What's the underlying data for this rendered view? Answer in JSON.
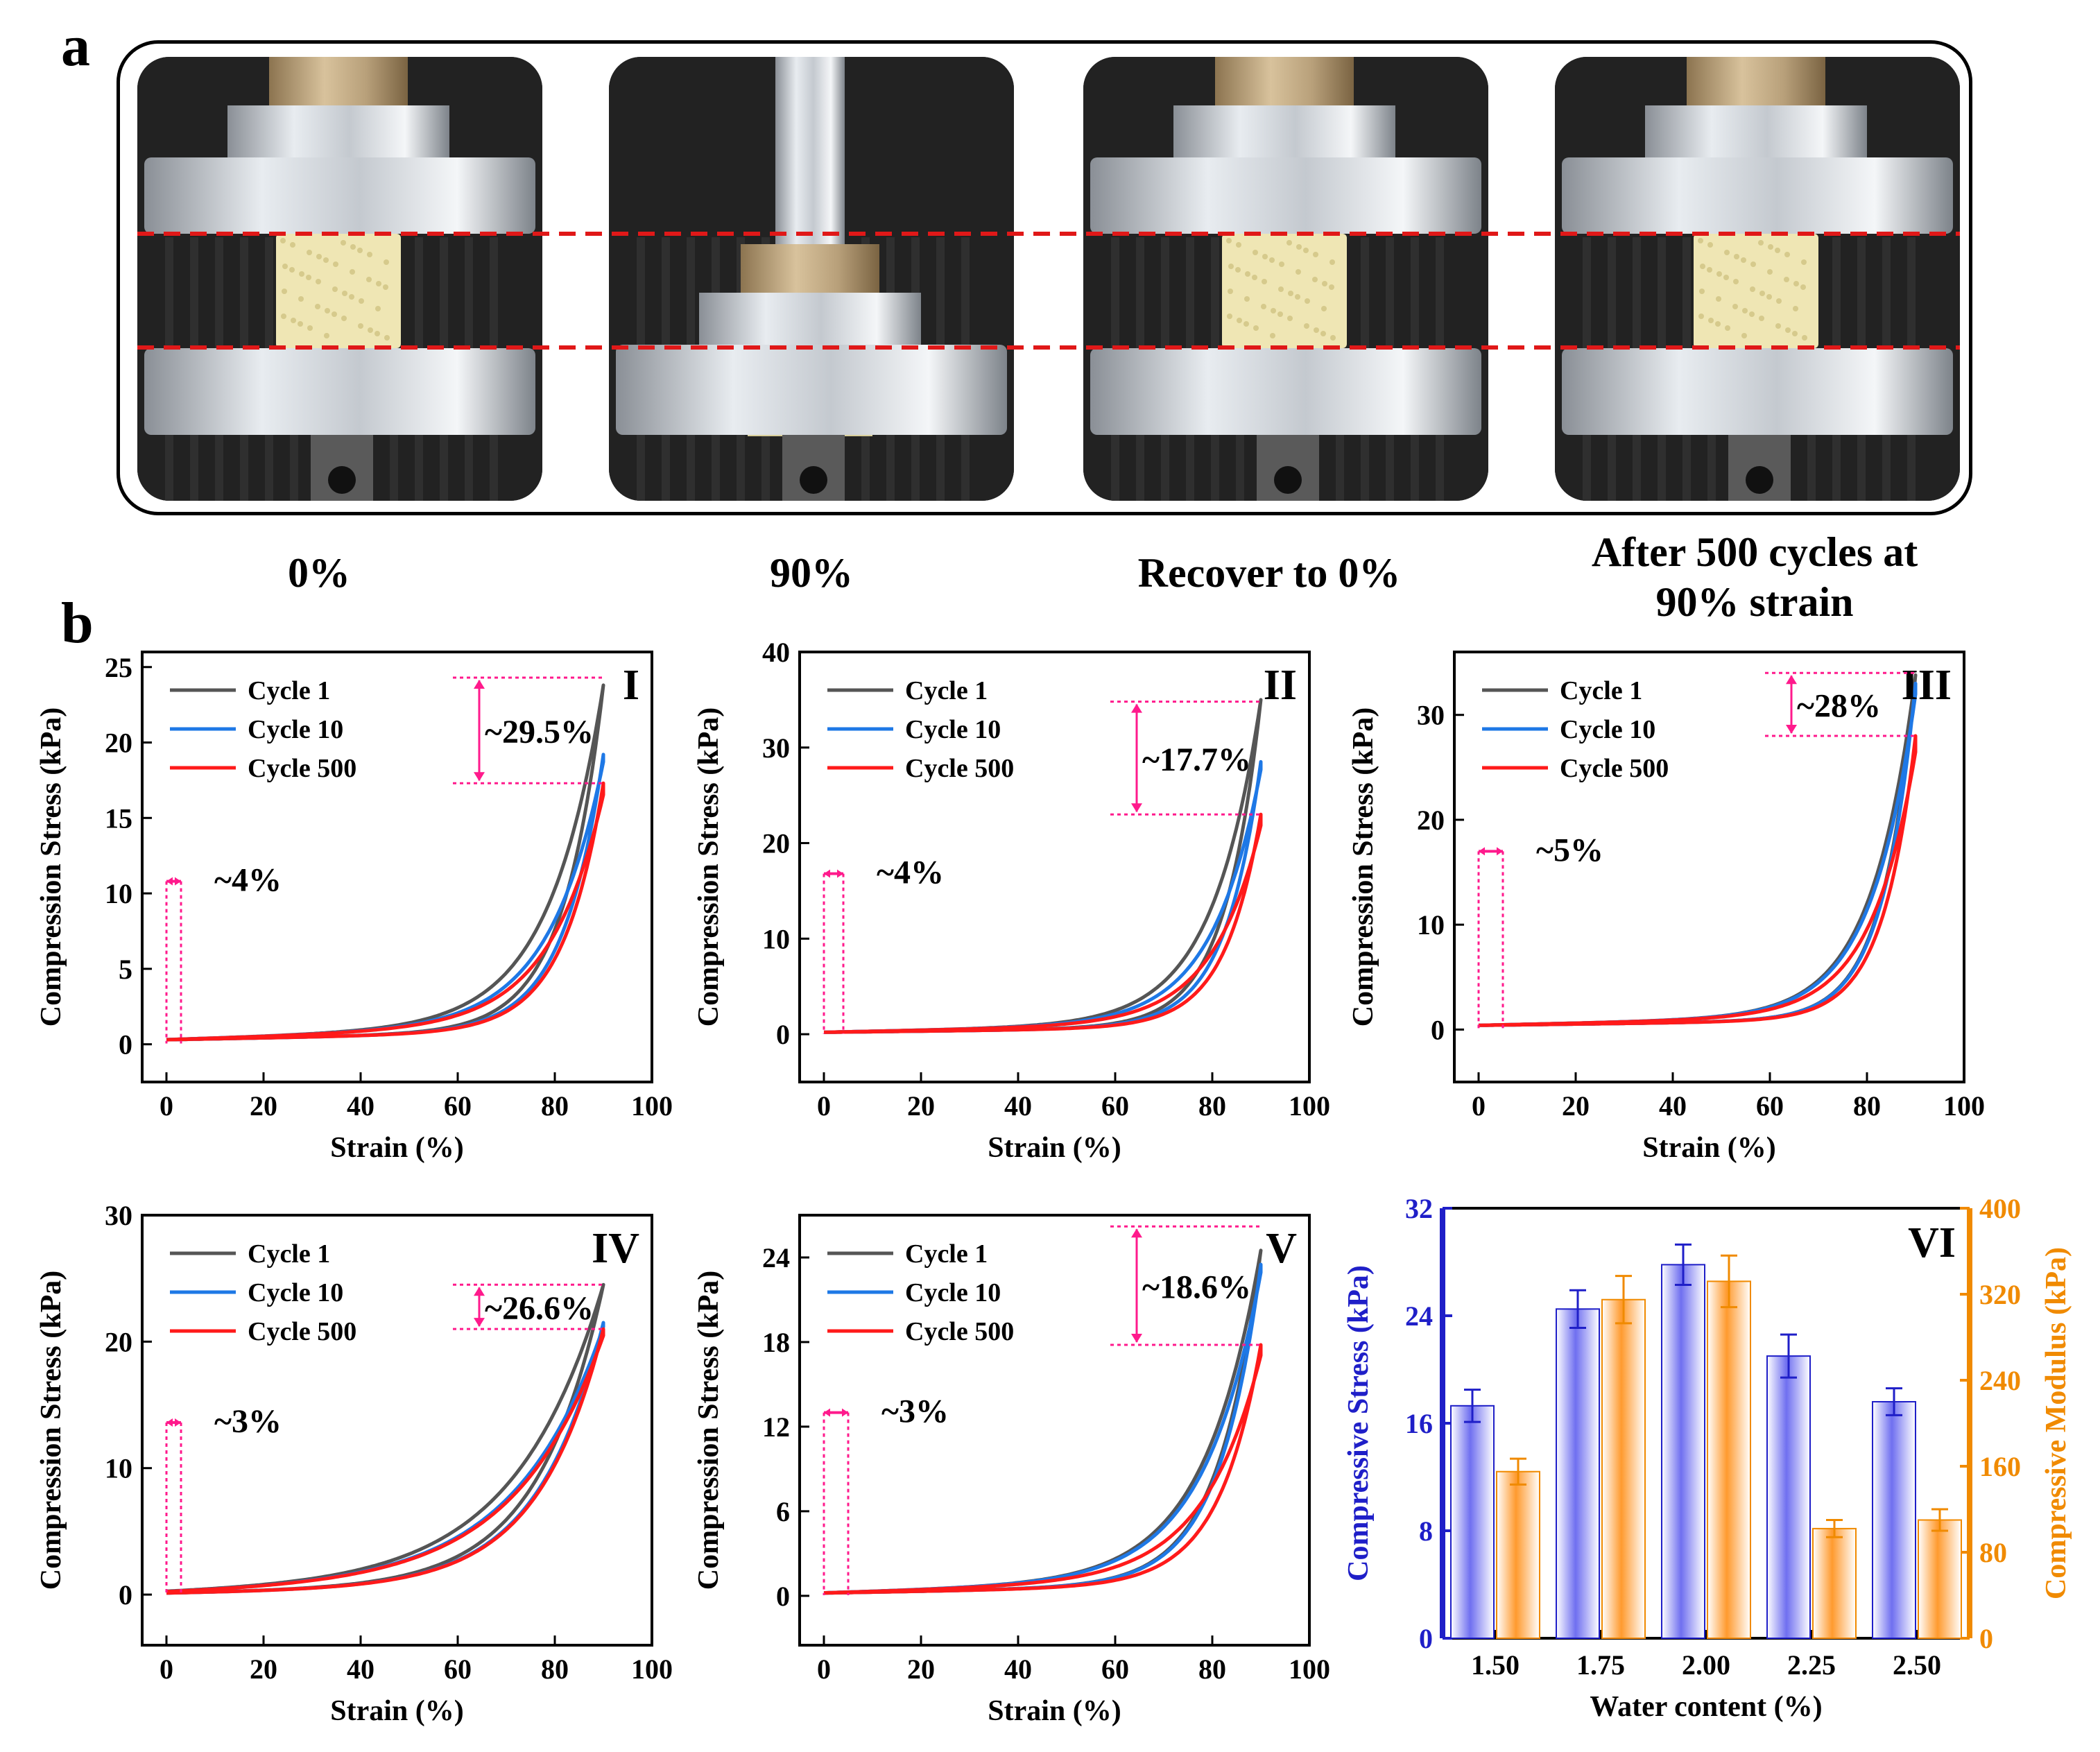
{
  "panel_labels": {
    "a": "a",
    "b": "b"
  },
  "photos": [
    {
      "caption": "0%",
      "state": "uncompressed"
    },
    {
      "caption": "90%",
      "state": "compressed"
    },
    {
      "caption": "Recover to 0%",
      "state": "recovered"
    },
    {
      "caption_line1": "After 500 cycles at",
      "caption_line2": "90% strain",
      "state": "after-cycles"
    }
  ],
  "colors": {
    "cycle1": "#555555",
    "cycle10": "#1e78e6",
    "cycle500": "#ff1a1a",
    "guide": "#ff1a8c",
    "photo_guide": "#e01818",
    "stress_axis": "#1f1fc8",
    "stress_bar": "#6f6ff0",
    "modulus_axis": "#f08a00",
    "modulus_bar": "#ff9a2e"
  },
  "chart_data": [
    {
      "id": "I",
      "type": "line",
      "roman": "I",
      "xlabel": "Strain (%)",
      "ylabel": "Compression Stress (kPa)",
      "xlim": [
        -5,
        100
      ],
      "ylim": [
        -2.5,
        26
      ],
      "xticks": [
        "0",
        "20",
        "40",
        "60",
        "80",
        "100"
      ],
      "xtick_values": [
        0,
        20,
        40,
        60,
        80,
        100
      ],
      "yticks": [
        "0",
        "5",
        "10",
        "15",
        "20",
        "25"
      ],
      "ytick_values": [
        0,
        5,
        10,
        15,
        20,
        25
      ],
      "legend": [
        "Cycle 1",
        "Cycle 10",
        "Cycle 500"
      ],
      "series": [
        {
          "name": "Cycle 1",
          "color_key": "cycle1",
          "peak": 23.8,
          "residual": 0.3,
          "k": 0.09,
          "load_shift": 0.0
        },
        {
          "name": "Cycle 10",
          "color_key": "cycle10",
          "peak": 19.2,
          "residual": 0.3,
          "k": 0.09,
          "load_shift": 1.0
        },
        {
          "name": "Cycle 500",
          "color_key": "cycle500",
          "peak": 17.3,
          "residual": 0.3,
          "k": 0.09,
          "load_shift": 1.8
        }
      ],
      "max_strain": 90,
      "peak_drop_label": "~29.5%",
      "peak_drop_range": [
        17.3,
        24.3
      ],
      "residual_label": "~4%",
      "residual_range": [
        0,
        3
      ],
      "residual_marker_y": 10.8
    },
    {
      "id": "II",
      "type": "line",
      "roman": "II",
      "xlabel": "Strain (%)",
      "ylabel": "Compression Stress (kPa)",
      "xlim": [
        -5,
        100
      ],
      "ylim": [
        -5,
        40
      ],
      "xticks": [
        "0",
        "20",
        "40",
        "60",
        "80",
        "100"
      ],
      "xtick_values": [
        0,
        20,
        40,
        60,
        80,
        100
      ],
      "yticks": [
        "0",
        "10",
        "20",
        "30",
        "40"
      ],
      "ytick_values": [
        0,
        10,
        20,
        30,
        40
      ],
      "legend": [
        "Cycle 1",
        "Cycle 10",
        "Cycle 500"
      ],
      "series": [
        {
          "name": "Cycle 1",
          "color_key": "cycle1",
          "peak": 35.0,
          "residual": 0.2,
          "k": 0.1,
          "load_shift": 0.0
        },
        {
          "name": "Cycle 10",
          "color_key": "cycle10",
          "peak": 28.5,
          "residual": 0.2,
          "k": 0.1,
          "load_shift": 1.0
        },
        {
          "name": "Cycle 500",
          "color_key": "cycle500",
          "peak": 23.0,
          "residual": 0.2,
          "k": 0.1,
          "load_shift": 1.8
        }
      ],
      "max_strain": 90,
      "peak_drop_label": "~17.7%",
      "peak_drop_range": [
        23.0,
        34.8
      ],
      "residual_label": "~4%",
      "residual_range": [
        0,
        4
      ],
      "residual_marker_y": 16.8
    },
    {
      "id": "III",
      "type": "line",
      "roman": "III",
      "xlabel": "Strain (%)",
      "ylabel": "Compression Stress (kPa)",
      "xlim": [
        -5,
        100
      ],
      "ylim": [
        -5,
        36
      ],
      "xticks": [
        "0",
        "20",
        "40",
        "60",
        "80",
        "100"
      ],
      "xtick_values": [
        0,
        20,
        40,
        60,
        80,
        100
      ],
      "yticks": [
        "0",
        "10",
        "20",
        "30"
      ],
      "ytick_values": [
        0,
        10,
        20,
        30
      ],
      "legend": [
        "Cycle 1",
        "Cycle 10",
        "Cycle 500"
      ],
      "series": [
        {
          "name": "Cycle 1",
          "color_key": "cycle1",
          "peak": 33.8,
          "residual": 0.4,
          "k": 0.11,
          "load_shift": 0.0
        },
        {
          "name": "Cycle 10",
          "color_key": "cycle10",
          "peak": 33.0,
          "residual": 0.4,
          "k": 0.11,
          "load_shift": 1.0
        },
        {
          "name": "Cycle 500",
          "color_key": "cycle500",
          "peak": 28.0,
          "residual": 0.4,
          "k": 0.11,
          "load_shift": 1.8
        }
      ],
      "max_strain": 90,
      "peak_drop_label": "~28%",
      "peak_drop_range": [
        28.0,
        34.0
      ],
      "residual_label": "~5%",
      "residual_range": [
        0,
        5
      ],
      "residual_marker_y": 17.0
    },
    {
      "id": "IV",
      "type": "line",
      "roman": "IV",
      "xlabel": "Strain (%)",
      "ylabel": "Compression Stress (kPa)",
      "xlim": [
        -5,
        100
      ],
      "ylim": [
        -4,
        30
      ],
      "xticks": [
        "0",
        "20",
        "40",
        "60",
        "80",
        "100"
      ],
      "xtick_values": [
        0,
        20,
        40,
        60,
        80,
        100
      ],
      "yticks": [
        "0",
        "10",
        "20",
        "30"
      ],
      "ytick_values": [
        0,
        10,
        20,
        30
      ],
      "legend": [
        "Cycle 1",
        "Cycle 10",
        "Cycle 500"
      ],
      "series": [
        {
          "name": "Cycle 1",
          "color_key": "cycle1",
          "peak": 24.5,
          "residual": 0.1,
          "k": 0.055,
          "load_shift": 0.0
        },
        {
          "name": "Cycle 10",
          "color_key": "cycle10",
          "peak": 21.5,
          "residual": 0.1,
          "k": 0.055,
          "load_shift": 1.0
        },
        {
          "name": "Cycle 500",
          "color_key": "cycle500",
          "peak": 21.0,
          "residual": 0.1,
          "k": 0.055,
          "load_shift": 1.6
        }
      ],
      "max_strain": 90,
      "peak_drop_label": "~26.6%",
      "peak_drop_range": [
        21.0,
        24.5
      ],
      "residual_label": "~3%",
      "residual_range": [
        0,
        3
      ],
      "residual_marker_y": 13.6
    },
    {
      "id": "V",
      "type": "line",
      "roman": "V",
      "xlabel": "Strain (%)",
      "ylabel": "Compression Stress (kPa)",
      "xlim": [
        -5,
        100
      ],
      "ylim": [
        -3.5,
        27
      ],
      "xticks": [
        "0",
        "20",
        "40",
        "60",
        "80",
        "100"
      ],
      "xtick_values": [
        0,
        20,
        40,
        60,
        80,
        100
      ],
      "yticks": [
        "0",
        "6",
        "12",
        "18",
        "24"
      ],
      "ytick_values": [
        0,
        6,
        12,
        18,
        24
      ],
      "legend": [
        "Cycle 1",
        "Cycle 10",
        "Cycle 500"
      ],
      "series": [
        {
          "name": "Cycle 1",
          "color_key": "cycle1",
          "peak": 24.5,
          "residual": 0.2,
          "k": 0.085,
          "load_shift": 0.0
        },
        {
          "name": "Cycle 10",
          "color_key": "cycle10",
          "peak": 23.5,
          "residual": 0.2,
          "k": 0.085,
          "load_shift": 1.0
        },
        {
          "name": "Cycle 500",
          "color_key": "cycle500",
          "peak": 17.8,
          "residual": 0.2,
          "k": 0.085,
          "load_shift": 1.8
        }
      ],
      "max_strain": 90,
      "peak_drop_label": "~18.6%",
      "peak_drop_range": [
        17.8,
        26.2
      ],
      "residual_label": "~3%",
      "residual_range": [
        0,
        5
      ],
      "residual_marker_y": 13.0
    },
    {
      "id": "VI",
      "type": "bar",
      "roman": "VI",
      "xlabel": "Water content (%)",
      "ylabel_left": "Compressive Stress (kPa)",
      "ylabel_right": "Compressive Modulus (kPa)",
      "categories": [
        "1.50",
        "1.75",
        "2.00",
        "2.25",
        "2.50"
      ],
      "ylim_left": [
        0,
        32
      ],
      "yticks_left": [
        "0",
        "8",
        "16",
        "24",
        "32"
      ],
      "ytick_values_left": [
        0,
        8,
        16,
        24,
        32
      ],
      "ylim_right": [
        0,
        400
      ],
      "yticks_right": [
        "0",
        "80",
        "160",
        "240",
        "320",
        "400"
      ],
      "ytick_values_right": [
        0,
        80,
        160,
        240,
        320,
        400
      ],
      "series": [
        {
          "name": "Compressive Stress",
          "axis": "left",
          "values": [
            17.3,
            24.5,
            27.8,
            21.0,
            17.6
          ],
          "errors": [
            1.2,
            1.4,
            1.5,
            1.6,
            1.0
          ]
        },
        {
          "name": "Compressive Modulus",
          "axis": "right",
          "values": [
            155,
            315,
            332,
            102,
            110
          ],
          "errors": [
            12,
            22,
            24,
            8,
            10
          ]
        }
      ]
    }
  ]
}
